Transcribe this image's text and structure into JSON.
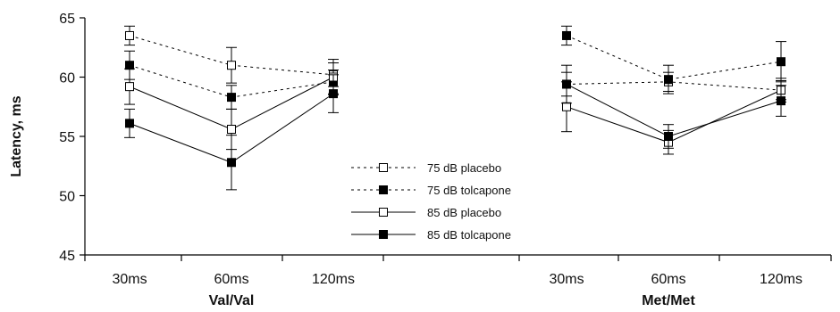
{
  "chart_data": {
    "type": "line",
    "ylabel": "Latency, ms",
    "ylim": [
      45,
      65
    ],
    "yticks": [
      45,
      50,
      55,
      60,
      65
    ],
    "grid": false,
    "legend_position": "center",
    "groups": [
      {
        "name": "Val/Val",
        "categories": [
          "30ms",
          "60ms",
          "120ms"
        ]
      },
      {
        "name": "Met/Met",
        "categories": [
          "30ms",
          "60ms",
          "120ms"
        ]
      }
    ],
    "series": [
      {
        "name": "75 dB placebo",
        "style": "dotted",
        "marker": "open-square",
        "values": [
          [
            63.5,
            61.0,
            60.2
          ],
          [
            59.4,
            59.6,
            58.9
          ]
        ],
        "errors": [
          [
            0.8,
            1.5,
            1.0
          ],
          [
            1.0,
            0.8,
            1.0
          ]
        ]
      },
      {
        "name": "75 dB tolcapone",
        "style": "dotted",
        "marker": "filled-square",
        "values": [
          [
            61.0,
            58.3,
            59.6
          ],
          [
            63.5,
            59.8,
            61.3
          ]
        ],
        "errors": [
          [
            1.2,
            1.0,
            1.0
          ],
          [
            0.8,
            1.2,
            1.7
          ]
        ]
      },
      {
        "name": "85 dB placebo",
        "style": "solid",
        "marker": "open-square",
        "values": [
          [
            59.2,
            55.6,
            60.0
          ],
          [
            57.5,
            54.5,
            58.9
          ]
        ],
        "errors": [
          [
            1.5,
            1.7,
            1.5
          ],
          [
            2.1,
            1.0,
            0.8
          ]
        ]
      },
      {
        "name": "85 dB tolcapone",
        "style": "solid",
        "marker": "filled-square",
        "values": [
          [
            56.1,
            52.8,
            58.6
          ],
          [
            59.4,
            55.0,
            58.0
          ]
        ],
        "errors": [
          [
            1.2,
            2.3,
            1.6
          ],
          [
            1.6,
            1.0,
            1.3
          ]
        ]
      }
    ]
  }
}
